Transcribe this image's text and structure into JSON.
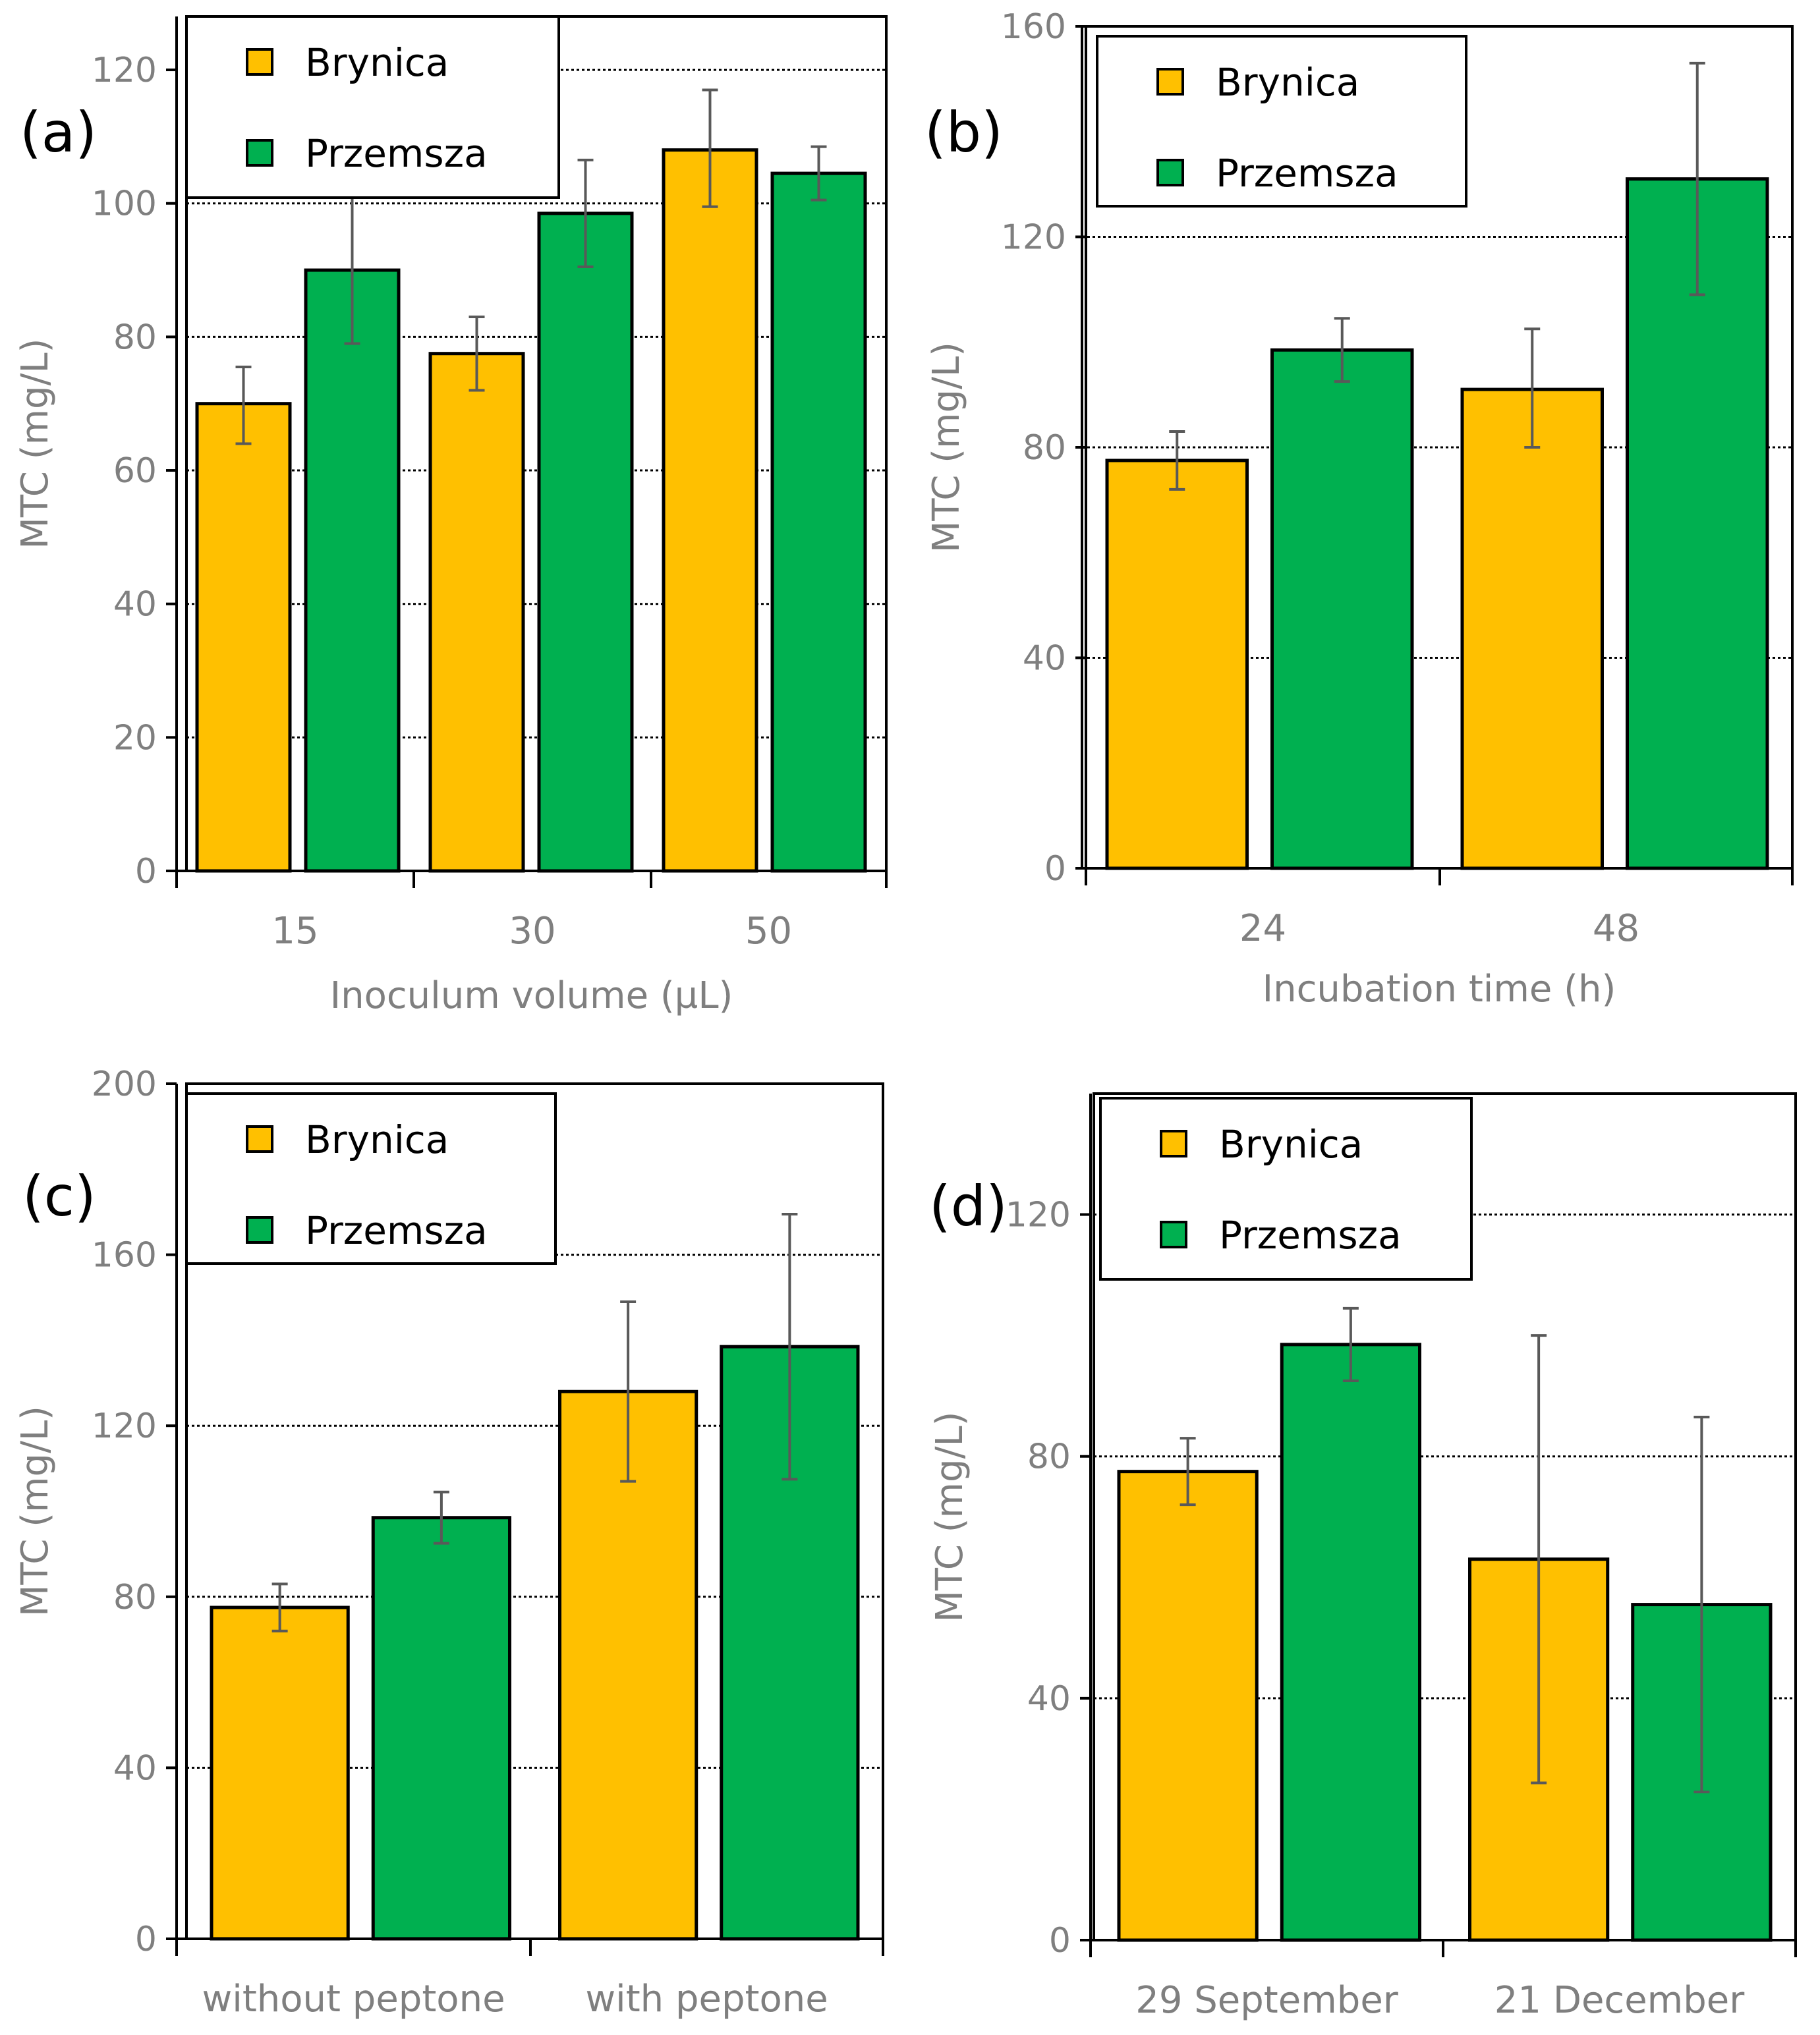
{
  "colors": {
    "brynica": "#FFC000",
    "przemsza": "#00B050",
    "grid": "#000000",
    "tick_text": "#7F7F7F",
    "error_bar": "#595959"
  },
  "legend": {
    "series_a": "Brynica",
    "series_b": "Przemsza"
  },
  "chart_data": [
    {
      "panel_label": "(a)",
      "type": "bar",
      "xlabel": "Inoculum volume (µL)",
      "ylabel": "MTC (mg/L)",
      "ylim": [
        0,
        128
      ],
      "yticks": [
        0,
        20,
        40,
        60,
        80,
        100,
        120
      ],
      "gridlines": [
        20,
        40,
        60,
        80,
        100,
        120
      ],
      "categories": [
        "15",
        "30",
        "50"
      ],
      "series": [
        {
          "name": "Brynica",
          "values": [
            70,
            77.5,
            108
          ],
          "err_low": [
            64,
            72,
            99.5
          ],
          "err_high": [
            75.5,
            83,
            117
          ]
        },
        {
          "name": "Przemsza",
          "values": [
            90,
            98.5,
            104.5
          ],
          "err_low": [
            79,
            90.5,
            100.5
          ],
          "err_high": [
            101,
            106.5,
            108.5
          ]
        }
      ]
    },
    {
      "panel_label": "(b)",
      "type": "bar",
      "xlabel": "Incubation time (h)",
      "ylabel": "MTC (mg/L)",
      "ylim": [
        0,
        160
      ],
      "yticks": [
        0,
        40,
        80,
        120,
        160
      ],
      "gridlines": [
        40,
        80,
        120
      ],
      "categories": [
        "24",
        "48"
      ],
      "series": [
        {
          "name": "Brynica",
          "values": [
            77.5,
            91
          ],
          "err_low": [
            72,
            80
          ],
          "err_high": [
            83,
            102.5
          ]
        },
        {
          "name": "Przemsza",
          "values": [
            98.5,
            131
          ],
          "err_low": [
            92.5,
            109
          ],
          "err_high": [
            104.5,
            153
          ]
        }
      ]
    },
    {
      "panel_label": "(c)",
      "type": "bar",
      "xlabel": "",
      "ylabel": "MTC (mg/L)",
      "ylim": [
        0,
        200
      ],
      "yticks": [
        0,
        40,
        80,
        120,
        160,
        200
      ],
      "gridlines": [
        40,
        80,
        120,
        160
      ],
      "categories": [
        "without peptone",
        "with peptone"
      ],
      "series": [
        {
          "name": "Brynica",
          "values": [
            77.5,
            128
          ],
          "err_low": [
            72,
            107
          ],
          "err_high": [
            83,
            149
          ]
        },
        {
          "name": "Przemsza",
          "values": [
            98.5,
            138.5
          ],
          "err_low": [
            92.5,
            107.5
          ],
          "err_high": [
            104.5,
            169.5
          ]
        }
      ]
    },
    {
      "panel_label": "(d)",
      "type": "bar",
      "xlabel": "",
      "ylabel": "MTC (mg/L)",
      "ylim": [
        0,
        140
      ],
      "yticks": [
        0,
        40,
        80,
        120
      ],
      "gridlines": [
        40,
        80,
        120
      ],
      "categories": [
        "29 September",
        "21 December"
      ],
      "series": [
        {
          "name": "Brynica",
          "values": [
            77.5,
            63
          ],
          "err_low": [
            72,
            26
          ],
          "err_high": [
            83,
            100
          ]
        },
        {
          "name": "Przemsza",
          "values": [
            98.5,
            55.5
          ],
          "err_low": [
            92.5,
            24.5
          ],
          "err_high": [
            104.5,
            86.5
          ]
        }
      ]
    }
  ]
}
